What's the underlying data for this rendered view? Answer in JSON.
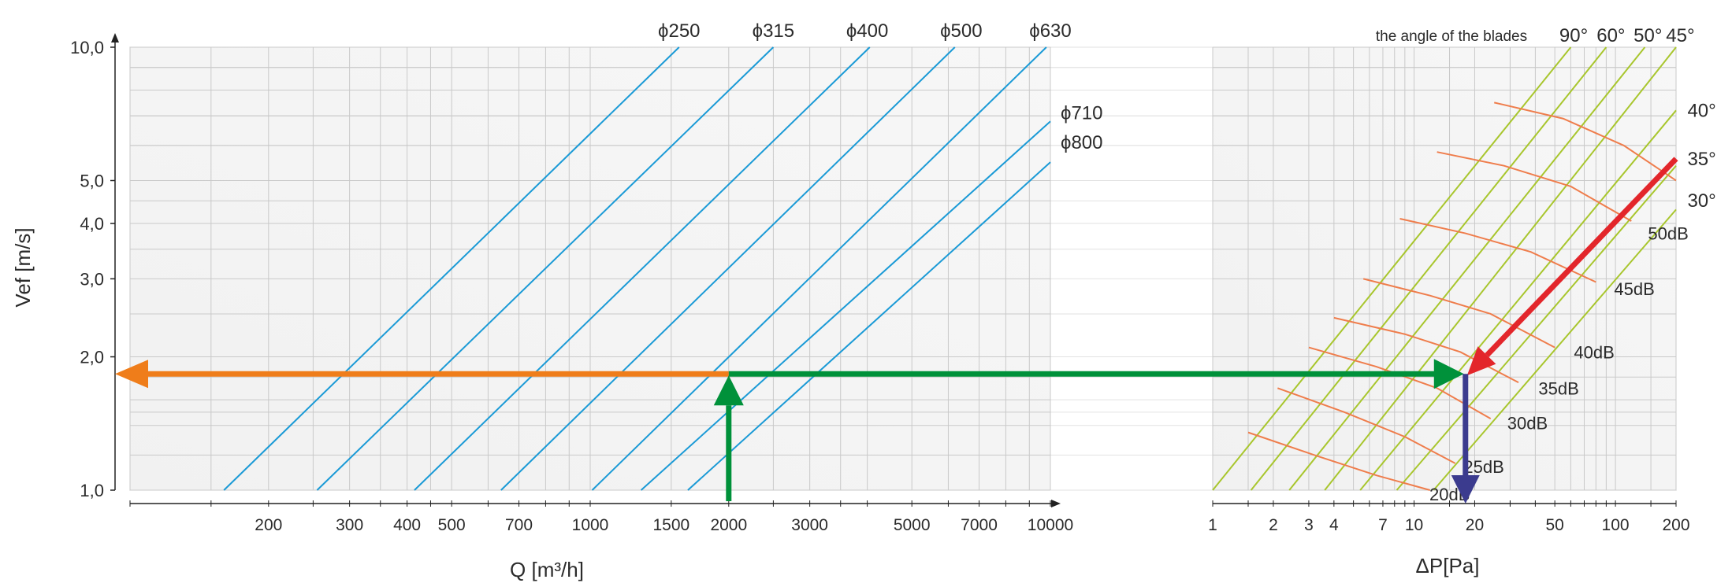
{
  "chart_data": {
    "type": "line",
    "subtype": "fan selection nomogram",
    "left_panel": {
      "x_axis": {
        "label": "Q [m³/h]",
        "scale": "log",
        "range": [
          100,
          10000
        ],
        "ticks": [
          "200",
          "300",
          "400",
          "500",
          "700",
          "1000",
          "1500",
          "2000",
          "3000",
          "5000",
          "7000",
          "10000"
        ],
        "tick_values": [
          200,
          300,
          400,
          500,
          700,
          1000,
          1500,
          2000,
          3000,
          5000,
          7000,
          10000
        ]
      },
      "y_axis": {
        "label": "Vef [m/s]",
        "scale": "log",
        "range": [
          1.0,
          10.0
        ],
        "ticks": [
          "1,0",
          "2,0",
          "3,0",
          "4,0",
          "5,0",
          "10,0"
        ],
        "tick_values": [
          1,
          2,
          3,
          4,
          5,
          10
        ]
      },
      "diameter_lines": [
        {
          "label": "ϕ250",
          "points": [
            [
              160,
              1.0
            ],
            [
              1560,
              10.0
            ]
          ]
        },
        {
          "label": "ϕ315",
          "points": [
            [
              255,
              1.0
            ],
            [
              2500,
              10.0
            ]
          ]
        },
        {
          "label": "ϕ400",
          "points": [
            [
              415,
              1.0
            ],
            [
              4050,
              10.0
            ]
          ]
        },
        {
          "label": "ϕ500",
          "points": [
            [
              640,
              1.0
            ],
            [
              6200,
              10.0
            ]
          ]
        },
        {
          "label": "ϕ630",
          "points": [
            [
              1010,
              1.0
            ],
            [
              9800,
              10.0
            ]
          ]
        },
        {
          "label": "ϕ710",
          "points": [
            [
              1290,
              1.0
            ],
            [
              10000,
              6.8
            ]
          ]
        },
        {
          "label": "ϕ800",
          "points": [
            [
              1630,
              1.0
            ],
            [
              10000,
              5.5
            ]
          ]
        }
      ]
    },
    "right_panel": {
      "x_axis": {
        "label": "ΔP[Pa]",
        "scale": "log",
        "range": [
          1,
          200
        ],
        "ticks": [
          "1",
          "2",
          "3",
          "4",
          "7",
          "10",
          "20",
          "50",
          "100",
          "200"
        ],
        "tick_values": [
          1,
          2,
          3,
          4,
          7,
          10,
          20,
          50,
          100,
          200
        ]
      },
      "angle_title": "the angle of the blades",
      "blade_angle_lines": [
        {
          "label": "90°",
          "points": [
            [
              1.0,
              1.0
            ],
            [
              60,
              10.0
            ]
          ]
        },
        {
          "label": "60°",
          "points": [
            [
              1.55,
              1.0
            ],
            [
              90,
              10.0
            ]
          ]
        },
        {
          "label": "50°",
          "points": [
            [
              2.4,
              1.0
            ],
            [
              140,
              10.0
            ]
          ]
        },
        {
          "label": "45°",
          "points": [
            [
              3.6,
              1.0
            ],
            [
              200,
              10.0
            ]
          ]
        },
        {
          "label": "40°",
          "points": [
            [
              5.4,
              1.0
            ],
            [
              200,
              7.2
            ]
          ]
        },
        {
          "label": "35°",
          "points": [
            [
              8.2,
              1.0
            ],
            [
              200,
              5.4
            ]
          ]
        },
        {
          "label": "30°",
          "points": [
            [
              12.5,
              1.0
            ],
            [
              200,
              4.3
            ]
          ]
        }
      ],
      "angle_label_positions": [
        {
          "label": "90°",
          "at": [
            62,
            10.3
          ]
        },
        {
          "label": "60°",
          "at": [
            95,
            10.3
          ]
        },
        {
          "label": "50°",
          "at": [
            145,
            10.3
          ]
        },
        {
          "label": "45°",
          "at": [
            210,
            10.3
          ]
        },
        {
          "label": "40°",
          "at": [
            212,
            7.2
          ]
        },
        {
          "label": "35°",
          "at": [
            212,
            5.6
          ]
        },
        {
          "label": "30°",
          "at": [
            212,
            4.5
          ]
        }
      ],
      "noise_curves": [
        {
          "label": "20dB",
          "points": [
            [
              1.5,
              1.35
            ],
            [
              3.2,
              1.2
            ],
            [
              6.5,
              1.08
            ],
            [
              12,
              1.0
            ]
          ],
          "label_at": [
            11.5,
            0.98
          ]
        },
        {
          "label": "25dB",
          "points": [
            [
              2.1,
              1.7
            ],
            [
              4.5,
              1.5
            ],
            [
              9,
              1.32
            ],
            [
              16,
              1.15
            ]
          ],
          "label_at": [
            17,
            1.13
          ]
        },
        {
          "label": "30dB",
          "points": [
            [
              3,
              2.1
            ],
            [
              6.5,
              1.9
            ],
            [
              13,
              1.7
            ],
            [
              24,
              1.45
            ]
          ],
          "label_at": [
            28,
            1.42
          ]
        },
        {
          "label": "35dB",
          "points": [
            [
              4,
              2.45
            ],
            [
              9,
              2.25
            ],
            [
              17,
              2.05
            ],
            [
              33,
              1.75
            ]
          ],
          "label_at": [
            40,
            1.7
          ]
        },
        {
          "label": "40dB",
          "points": [
            [
              5.6,
              3.0
            ],
            [
              12,
              2.75
            ],
            [
              24,
              2.5
            ],
            [
              50,
              2.1
            ]
          ],
          "label_at": [
            60,
            2.05
          ]
        },
        {
          "label": "45dB",
          "points": [
            [
              8.5,
              4.1
            ],
            [
              18,
              3.8
            ],
            [
              38,
              3.45
            ],
            [
              80,
              2.95
            ]
          ],
          "label_at": [
            95,
            2.85
          ]
        },
        {
          "label": "50dB",
          "points": [
            [
              13,
              5.8
            ],
            [
              28,
              5.4
            ],
            [
              60,
              4.85
            ],
            [
              120,
              4.05
            ]
          ],
          "label_at": [
            140,
            3.8
          ]
        },
        {
          "label": "",
          "points": [
            [
              25,
              7.5
            ],
            [
              55,
              6.9
            ],
            [
              110,
              6.0
            ],
            [
              200,
              5.0
            ]
          ]
        }
      ]
    },
    "diameter_label_positions": [
      {
        "label": "ϕ250",
        "at": [
          1560,
          10.9
        ]
      },
      {
        "label": "ϕ315",
        "at": [
          2500,
          10.9
        ]
      },
      {
        "label": "ϕ400",
        "at": [
          4000,
          10.9
        ]
      },
      {
        "label": "ϕ500",
        "at": [
          6400,
          10.9
        ]
      },
      {
        "label": "ϕ630",
        "at": [
          10000,
          10.9
        ]
      },
      {
        "label": "ϕ710",
        "at": [
          10200,
          7.1
        ]
      },
      {
        "label": "ϕ800",
        "at": [
          10200,
          6.1
        ]
      }
    ],
    "selection_example": {
      "flow_Q": 2000,
      "velocity": 1.83,
      "pressure_dP": 18,
      "angle_start": [
        200,
        5.6
      ],
      "colors": {
        "flow_arrow": "#00913a",
        "velocity_arrow": "#ef7d1a",
        "angle_arrow": "#e3262b",
        "pressure_arrow": "#3b3b8e"
      }
    },
    "colors": {
      "diameter_lines": "#1a9ad6",
      "angle_lines": "#a8c62d",
      "noise_curves": "#ef7d4c",
      "grid": "#c9c9c9",
      "panel_bg": "#f4f4f4"
    }
  }
}
